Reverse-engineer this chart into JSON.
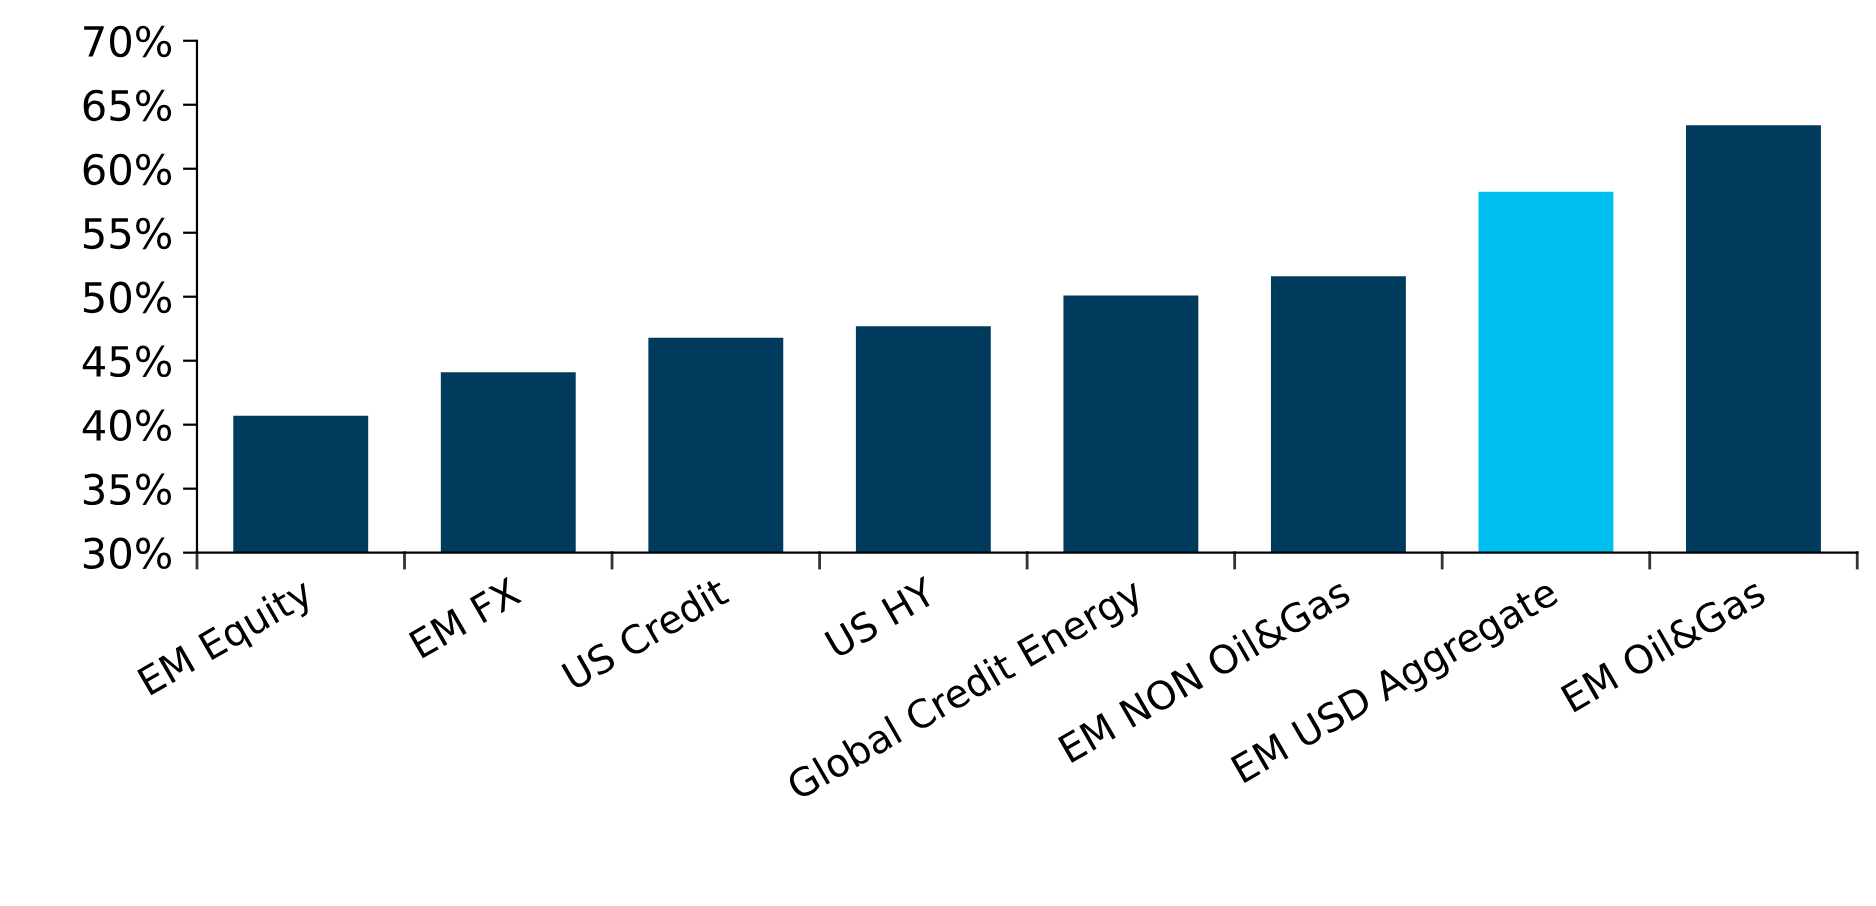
{
  "chart_data": {
    "type": "bar",
    "categories": [
      "EM Equity",
      "EM FX",
      "US Credit",
      "US HY",
      "Global Credit Energy",
      "EM NON Oil&Gas",
      "EM USD Aggregate",
      "EM Oil&Gas"
    ],
    "values": [
      40.7,
      44.1,
      46.8,
      47.7,
      50.1,
      51.6,
      58.2,
      63.4
    ],
    "colors": [
      "#003a5d",
      "#003a5d",
      "#003a5d",
      "#003a5d",
      "#003a5d",
      "#003a5d",
      "#00bef0",
      "#003a5d"
    ],
    "ylim": [
      30,
      70
    ],
    "yticks": [
      {
        "value": 30,
        "label": "30%"
      },
      {
        "value": 35,
        "label": "35%"
      },
      {
        "value": 40,
        "label": "40%"
      },
      {
        "value": 45,
        "label": "45%"
      },
      {
        "value": 50,
        "label": "50%"
      },
      {
        "value": 55,
        "label": "55%"
      },
      {
        "value": 60,
        "label": "60%"
      },
      {
        "value": 65,
        "label": "65%"
      },
      {
        "value": 70,
        "label": "70%"
      }
    ],
    "grid": false,
    "legend": false
  }
}
